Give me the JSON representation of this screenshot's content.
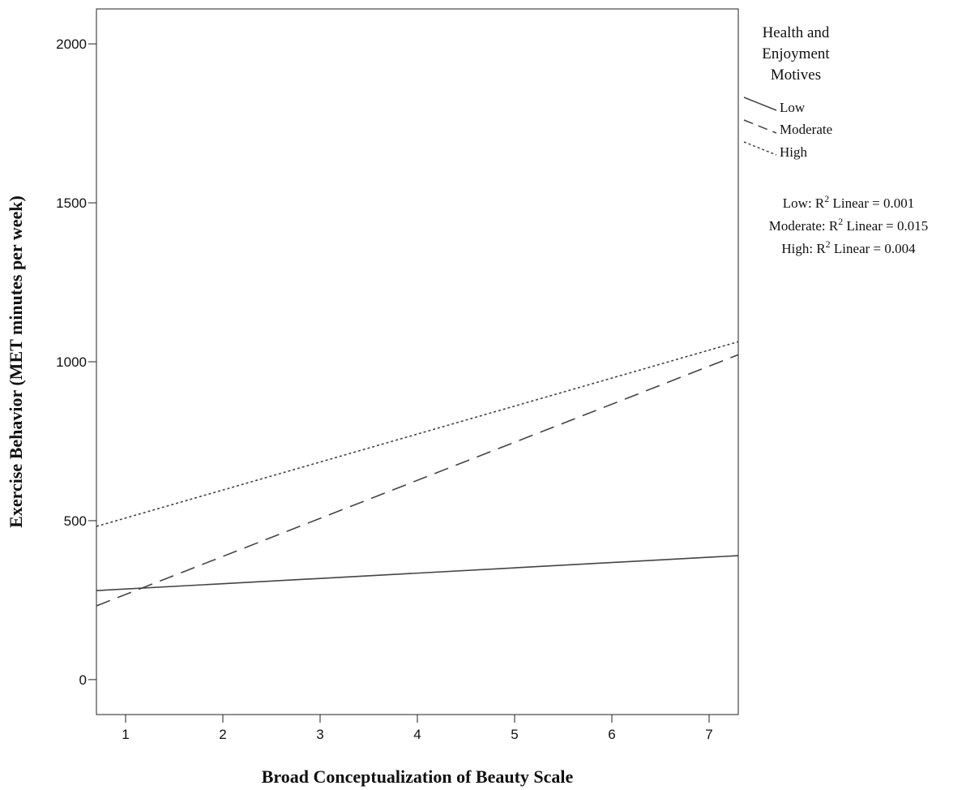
{
  "chart_data": {
    "type": "line",
    "title": "",
    "xlabel": "Broad Conceptualization of Beauty Scale",
    "ylabel": "Exercise Behavior (MET minutes per week)",
    "xlim": [
      0.7,
      7.3
    ],
    "ylim": [
      -110,
      2110
    ],
    "x_ticks": [
      1,
      2,
      3,
      4,
      5,
      6,
      7
    ],
    "y_ticks": [
      0,
      500,
      1000,
      1500,
      2000
    ],
    "grid": false,
    "legend": {
      "title_lines": [
        "Health and",
        "Enjoyment",
        "Motives"
      ],
      "placement": "right",
      "entries": [
        "Low",
        "Moderate",
        "High"
      ]
    },
    "fit_notes": [
      {
        "group": "Low",
        "prefix": "Low: R",
        "sup": "2",
        "suffix": " Linear = 0.001"
      },
      {
        "group": "Moderate",
        "prefix": "Moderate: R",
        "sup": "2",
        "suffix": " Linear = 0.015"
      },
      {
        "group": "High",
        "prefix": "High: R",
        "sup": "2",
        "suffix": " Linear = 0.004"
      }
    ],
    "series": [
      {
        "name": "Low",
        "style": "solid",
        "x": [
          0.7,
          7.3
        ],
        "y": [
          280,
          390
        ]
      },
      {
        "name": "Moderate",
        "style": "dashed",
        "x": [
          0.7,
          7.3
        ],
        "y": [
          232,
          1022
        ]
      },
      {
        "name": "High",
        "style": "dotted",
        "x": [
          0.7,
          7.3
        ],
        "y": [
          482,
          1063
        ]
      }
    ],
    "colors": {
      "line": "#444444",
      "axis": "#222222",
      "text": "#111111",
      "background": "#ffffff"
    }
  }
}
